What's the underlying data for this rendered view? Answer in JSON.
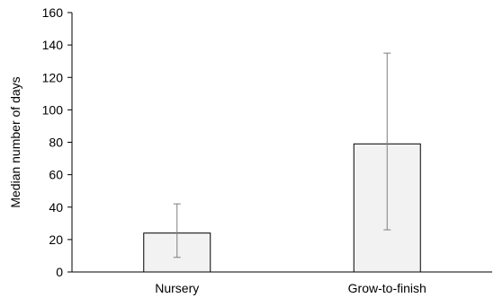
{
  "chart_data": {
    "type": "bar",
    "categories": [
      "Nursery",
      "Grow-to-finish"
    ],
    "values": [
      24,
      79
    ],
    "error_high": [
      42,
      135
    ],
    "error_low": [
      9,
      26
    ],
    "ylabel": "Median number of days",
    "xlabel": "",
    "title": "",
    "ylim": [
      0,
      160
    ],
    "yticks": [
      "0",
      "20",
      "40",
      "60",
      "80",
      "100",
      "120",
      "140",
      "160"
    ],
    "grid": false,
    "legend": "none",
    "colors": {
      "bar_fill": "#f2f2f2",
      "bar_stroke": "#000000",
      "axis": "#000000",
      "error_bar": "#7f7f7f"
    }
  }
}
